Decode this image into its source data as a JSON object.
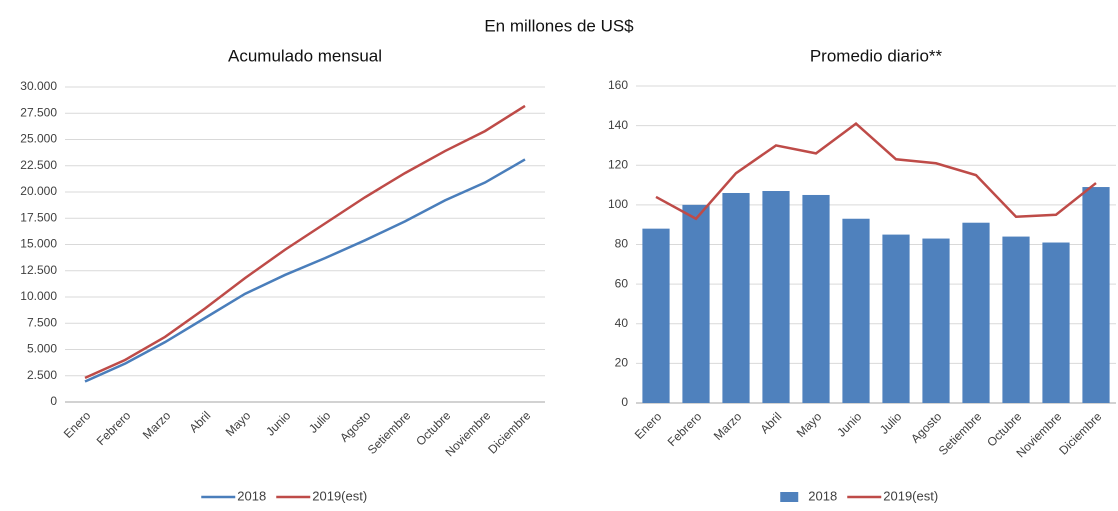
{
  "title": "En millones de US$",
  "chart_data": [
    {
      "type": "line",
      "title": "Acumulado mensual",
      "categories": [
        "Enero",
        "Febrero",
        "Marzo",
        "Abril",
        "Mayo",
        "Junio",
        "Julio",
        "Agosto",
        "Setiembre",
        "Octubre",
        "Noviembre",
        "Diciembre"
      ],
      "series": [
        {
          "name": "2018",
          "color": "#4a7ebb",
          "values": [
            1950,
            3650,
            5700,
            8000,
            10300,
            12100,
            13700,
            15400,
            17200,
            19200,
            20900,
            23100
          ]
        },
        {
          "name": "2019(est)",
          "color": "#be4b48",
          "values": [
            2300,
            4000,
            6200,
            8900,
            11800,
            14500,
            17000,
            19500,
            21800,
            23900,
            25800,
            28200
          ]
        }
      ],
      "ylim": [
        0,
        30000
      ],
      "yticks": [
        0,
        {
          "value": 2500,
          "label": "2.500"
        },
        {
          "value": 5000,
          "label": "5.000"
        },
        {
          "value": 7500,
          "label": "7.500"
        },
        {
          "value": 10000,
          "label": "10.000"
        },
        {
          "value": 12500,
          "label": "12.500"
        },
        {
          "value": 15000,
          "label": "15.000"
        },
        {
          "value": 17500,
          "label": "17.500"
        },
        {
          "value": 20000,
          "label": "20.000"
        },
        {
          "value": 22500,
          "label": "22.500"
        },
        {
          "value": 25000,
          "label": "25.000"
        },
        {
          "value": 27500,
          "label": "27.500"
        },
        {
          "value": 30000,
          "label": "30.000"
        }
      ],
      "grid": true,
      "legend": "bottom"
    },
    {
      "type": "bar_line",
      "title": "Promedio diario**",
      "categories": [
        "Enero",
        "Febrero",
        "Marzo",
        "Abril",
        "Mayo",
        "Junio",
        "Julio",
        "Agosto",
        "Setiembre",
        "Octubre",
        "Noviembre",
        "Diciembre"
      ],
      "series": [
        {
          "name": "2018",
          "type": "bar",
          "color": "#4f81bd",
          "values": [
            88,
            100,
            106,
            107,
            105,
            93,
            85,
            83,
            91,
            84,
            81,
            109
          ]
        },
        {
          "name": "2019(est)",
          "type": "line",
          "color": "#be4b48",
          "values": [
            104,
            93,
            116,
            130,
            126,
            141,
            123,
            121,
            115,
            94,
            95,
            111
          ]
        }
      ],
      "ylim": [
        0,
        160
      ],
      "yticks": [
        0,
        20,
        40,
        60,
        80,
        100,
        120,
        140,
        160
      ],
      "grid": true,
      "legend": "bottom"
    }
  ]
}
